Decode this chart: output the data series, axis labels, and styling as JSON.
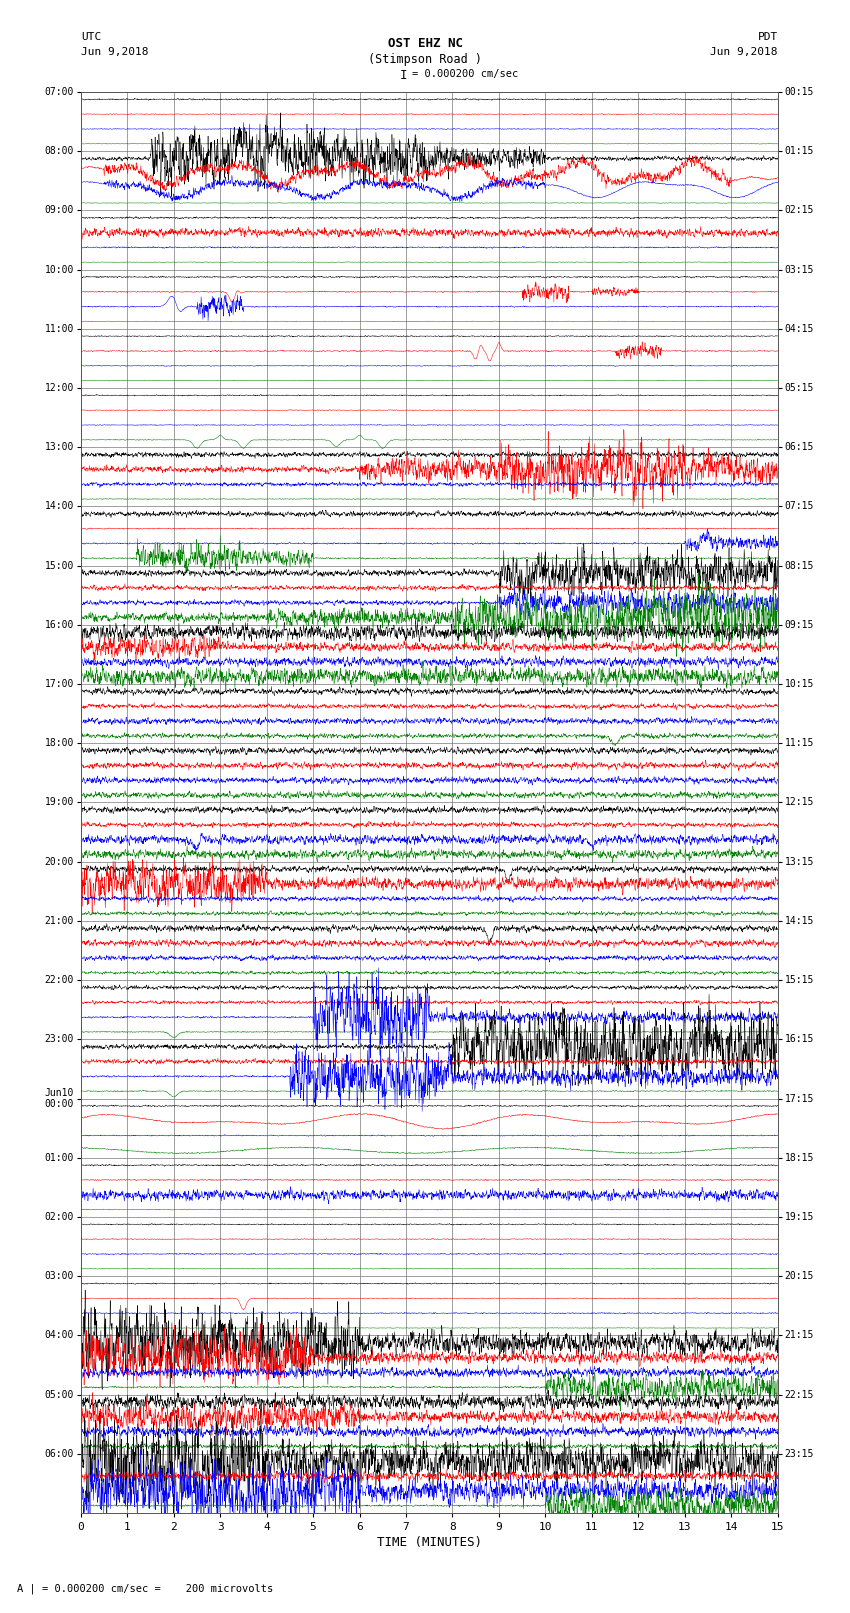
{
  "title_line1": "OST EHZ NC",
  "title_line2": "(Stimpson Road )",
  "title_scale": "I = 0.000200 cm/sec",
  "xlabel": "TIME (MINUTES)",
  "footer": "A | = 0.000200 cm/sec =    200 microvolts",
  "xlim": [
    0,
    15
  ],
  "xticks": [
    0,
    1,
    2,
    3,
    4,
    5,
    6,
    7,
    8,
    9,
    10,
    11,
    12,
    13,
    14,
    15
  ],
  "background_color": "#ffffff",
  "trace_colors": [
    "black",
    "red",
    "blue",
    "green"
  ],
  "utc_labels": [
    "07:00",
    "08:00",
    "09:00",
    "10:00",
    "11:00",
    "12:00",
    "13:00",
    "14:00",
    "15:00",
    "16:00",
    "17:00",
    "18:00",
    "19:00",
    "20:00",
    "21:00",
    "22:00",
    "23:00",
    "Jun10\n00:00",
    "01:00",
    "02:00",
    "03:00",
    "04:00",
    "05:00",
    "06:00"
  ],
  "pdt_labels": [
    "00:15",
    "01:15",
    "02:15",
    "03:15",
    "04:15",
    "05:15",
    "06:15",
    "07:15",
    "08:15",
    "09:15",
    "10:15",
    "11:15",
    "12:15",
    "13:15",
    "14:15",
    "15:15",
    "16:15",
    "17:15",
    "18:15",
    "19:15",
    "20:15",
    "21:15",
    "22:15",
    "23:15"
  ],
  "n_rows": 24,
  "n_traces_per_row": 4,
  "seed": 42,
  "fig_width": 8.5,
  "fig_height": 16.13,
  "dpi": 100
}
